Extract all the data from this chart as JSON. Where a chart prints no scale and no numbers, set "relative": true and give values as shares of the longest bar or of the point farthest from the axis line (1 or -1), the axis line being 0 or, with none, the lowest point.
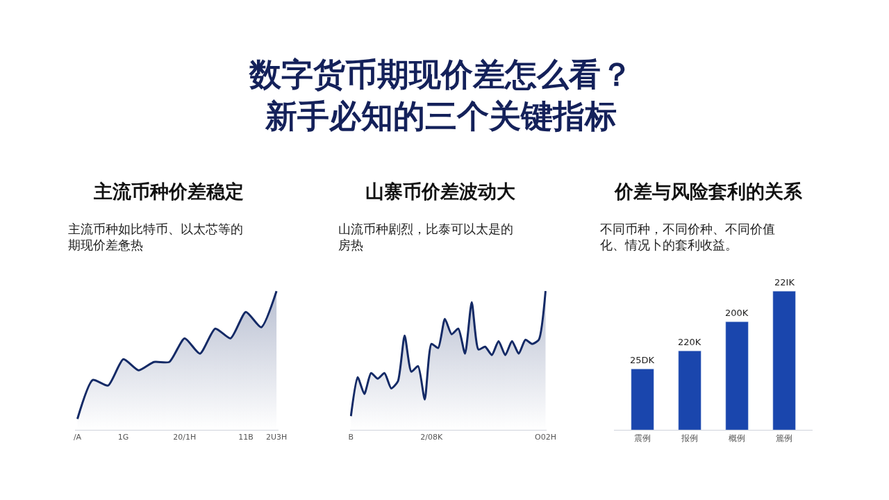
{
  "chart_data": [
    {
      "type": "area",
      "relative": true,
      "title": "主流币种价差稳定",
      "subtitle": "主流币种如比特币、以太芯等的期现价差惫热",
      "annotations": [
        "数字货币期现价差怎么看？新手必知的三个关键指标"
      ],
      "line_style": "solid",
      "categories": [
        "/A",
        null,
        null,
        "1G",
        null,
        null,
        null,
        "20/1H",
        null,
        null,
        null,
        "11B",
        null,
        "2U3H"
      ],
      "series": [
        {
          "color": "#142a66",
          "values": [
            0.08,
            0.36,
            0.32,
            0.51,
            0.43,
            0.49,
            0.49,
            0.66,
            0.55,
            0.73,
            0.66,
            0.85,
            0.74,
            1
          ]
        }
      ]
    },
    {
      "type": "area",
      "relative": true,
      "title": "山寨币价差波动大",
      "subtitle": "山流币种剧烈，比泰可以太是的房热",
      "line_style": "solid",
      "categories": [
        "B",
        null,
        null,
        null,
        null,
        null,
        null,
        null,
        null,
        null,
        null,
        null,
        "2/08K",
        null,
        null,
        null,
        null,
        null,
        null,
        null,
        null,
        null,
        null,
        null,
        null,
        null,
        null,
        null,
        null,
        "O02H"
      ],
      "series": [
        {
          "color": "#142a66",
          "values": [
            0.1,
            0.38,
            0.26,
            0.41,
            0.37,
            0.41,
            0.3,
            0.35,
            0.68,
            0.42,
            0.46,
            0.22,
            0.62,
            0.59,
            0.8,
            0.69,
            0.73,
            0.55,
            0.92,
            0.58,
            0.6,
            0.54,
            0.64,
            0.54,
            0.64,
            0.55,
            0.65,
            0.62,
            0.65,
            1
          ]
        }
      ]
    },
    {
      "type": "bar",
      "relative": true,
      "title": "价差与风险套利的关系",
      "subtitle": "不同币种，不同价种、不同价值化、情况卜的套利收益。",
      "categories": [
        "震例",
        "报例",
        "概例",
        "簏例"
      ],
      "values": [
        0.44,
        0.57,
        0.78,
        1
      ],
      "color": "#1a46ad",
      "annotations": [
        {
          "text": "25DK",
          "x": "震例",
          "y": 0.44
        },
        {
          "text": "220K",
          "x": "报例",
          "y": 0.57
        },
        {
          "text": "200K",
          "x": "概例",
          "y": 0.78
        },
        {
          "text": "22IK",
          "x": "簏例",
          "y": 1
        }
      ]
    }
  ]
}
